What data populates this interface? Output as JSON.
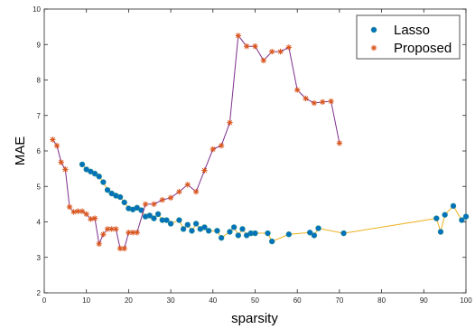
{
  "chart_data": {
    "type": "line",
    "xlabel": "sparsity",
    "ylabel": "MAE",
    "xlim": [
      0,
      100
    ],
    "ylim": [
      2,
      10
    ],
    "xticks": [
      0,
      10,
      20,
      30,
      40,
      50,
      60,
      70,
      80,
      90,
      100
    ],
    "yticks": [
      2,
      3,
      4,
      5,
      6,
      7,
      8,
      9,
      10
    ],
    "grid": false,
    "legend_position": "top-right",
    "series": [
      {
        "name": "Lasso",
        "marker": "circle",
        "line_color": "#EDB120",
        "marker_color": "#0072BD",
        "points": [
          [
            9,
            5.62
          ],
          [
            10,
            5.48
          ],
          [
            11,
            5.42
          ],
          [
            12,
            5.36
          ],
          [
            13,
            5.28
          ],
          [
            14,
            5.12
          ],
          [
            15,
            4.9
          ],
          [
            16,
            4.8
          ],
          [
            17,
            4.74
          ],
          [
            18,
            4.7
          ],
          [
            19,
            4.55
          ],
          [
            20,
            4.38
          ],
          [
            21,
            4.35
          ],
          [
            22,
            4.4
          ],
          [
            23,
            4.33
          ],
          [
            24,
            4.15
          ],
          [
            25,
            4.18
          ],
          [
            26,
            4.1
          ],
          [
            27,
            4.22
          ],
          [
            28,
            4.05
          ],
          [
            29,
            4.05
          ],
          [
            30,
            3.95
          ],
          [
            32,
            4.05
          ],
          [
            33,
            3.8
          ],
          [
            34,
            3.92
          ],
          [
            35,
            3.75
          ],
          [
            36,
            3.95
          ],
          [
            37,
            3.8
          ],
          [
            38,
            3.85
          ],
          [
            39,
            3.75
          ],
          [
            41,
            3.75
          ],
          [
            42,
            3.55
          ],
          [
            44,
            3.72
          ],
          [
            45,
            3.85
          ],
          [
            46,
            3.62
          ],
          [
            47,
            3.8
          ],
          [
            48,
            3.62
          ],
          [
            49,
            3.68
          ],
          [
            50,
            3.68
          ],
          [
            53,
            3.68
          ],
          [
            54,
            3.45
          ],
          [
            58,
            3.65
          ],
          [
            63,
            3.7
          ],
          [
            64,
            3.62
          ],
          [
            65,
            3.82
          ],
          [
            71,
            3.68
          ],
          [
            93,
            4.1
          ],
          [
            94,
            3.72
          ],
          [
            95,
            4.2
          ],
          [
            97,
            4.45
          ],
          [
            99,
            4.05
          ],
          [
            100,
            4.15
          ]
        ]
      },
      {
        "name": "Proposed",
        "marker": "asterisk",
        "line_color": "#7E2F8E",
        "marker_color": "#D95319",
        "points": [
          [
            2,
            6.32
          ],
          [
            3,
            6.15
          ],
          [
            4,
            5.68
          ],
          [
            5,
            5.48
          ],
          [
            6,
            4.42
          ],
          [
            7,
            4.28
          ],
          [
            8,
            4.3
          ],
          [
            9,
            4.3
          ],
          [
            10,
            4.22
          ],
          [
            11,
            4.08
          ],
          [
            12,
            4.1
          ],
          [
            13,
            3.38
          ],
          [
            14,
            3.65
          ],
          [
            15,
            3.8
          ],
          [
            16,
            3.8
          ],
          [
            17,
            3.8
          ],
          [
            18,
            3.25
          ],
          [
            19,
            3.25
          ],
          [
            20,
            3.7
          ],
          [
            21,
            3.7
          ],
          [
            22,
            3.7
          ],
          [
            24,
            4.5
          ],
          [
            26,
            4.5
          ],
          [
            28,
            4.62
          ],
          [
            30,
            4.68
          ],
          [
            32,
            4.85
          ],
          [
            34,
            5.05
          ],
          [
            36,
            4.85
          ],
          [
            38,
            5.45
          ],
          [
            40,
            6.05
          ],
          [
            42,
            6.15
          ],
          [
            44,
            6.8
          ],
          [
            46,
            9.25
          ],
          [
            48,
            8.95
          ],
          [
            50,
            8.95
          ],
          [
            52,
            8.55
          ],
          [
            54,
            8.8
          ],
          [
            56,
            8.8
          ],
          [
            58,
            8.92
          ],
          [
            60,
            7.72
          ],
          [
            62,
            7.48
          ],
          [
            64,
            7.35
          ],
          [
            66,
            7.38
          ],
          [
            68,
            7.4
          ],
          [
            70,
            6.22
          ]
        ]
      }
    ]
  }
}
